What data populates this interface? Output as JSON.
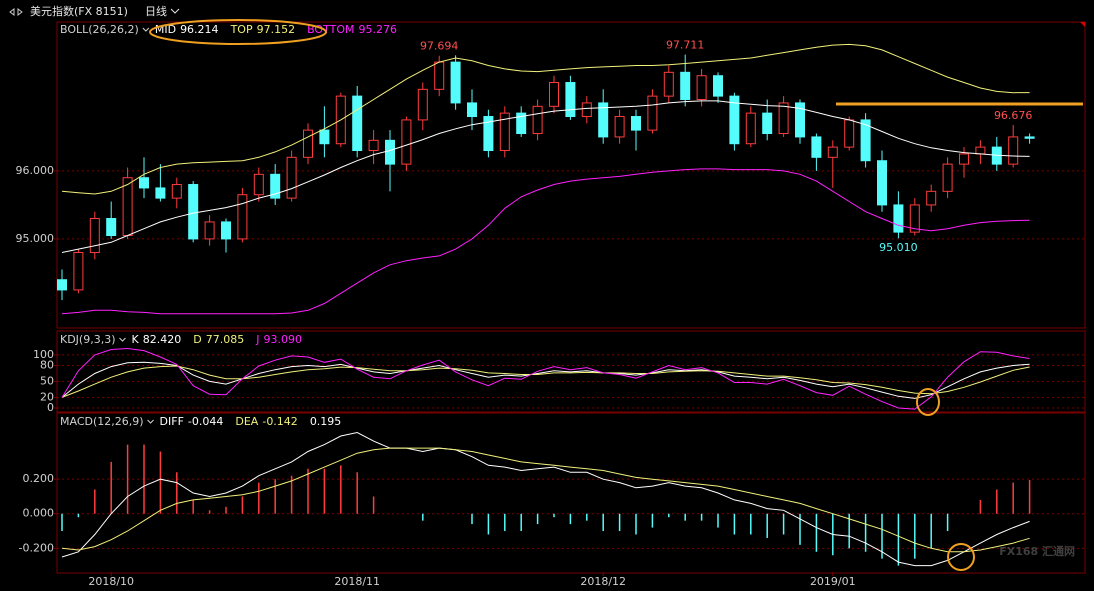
{
  "header": {
    "symbol": "美元指数(FX 8151)",
    "period": "日线"
  },
  "watermark": "FX168 汇通网",
  "chart_data": [
    {
      "type": "candlestick",
      "indicator": "BOLL(26,26,2)",
      "categories": [
        null,
        null,
        null,
        "2018/10",
        null,
        null,
        null,
        null,
        null,
        null,
        null,
        null,
        null,
        null,
        null,
        null,
        null,
        null,
        "2018/11",
        null,
        null,
        null,
        null,
        null,
        null,
        null,
        null,
        null,
        null,
        null,
        null,
        null,
        null,
        "2018/12",
        null,
        null,
        null,
        null,
        null,
        null,
        null,
        null,
        null,
        null,
        null,
        null,
        null,
        "2019/01",
        null,
        null,
        null,
        null,
        null,
        null,
        null,
        null,
        null,
        null,
        null,
        null
      ],
      "open": [
        94.4,
        94.25,
        94.8,
        95.3,
        95.05,
        95.9,
        95.75,
        95.6,
        95.8,
        95.0,
        95.25,
        95.0,
        95.65,
        95.95,
        95.6,
        96.2,
        96.6,
        96.4,
        97.1,
        96.3,
        96.45,
        96.1,
        96.75,
        97.2,
        97.6,
        97.0,
        96.8,
        96.3,
        96.85,
        96.55,
        96.95,
        97.3,
        96.8,
        97.0,
        96.5,
        96.8,
        96.6,
        97.1,
        97.45,
        97.05,
        97.4,
        97.1,
        96.4,
        96.85,
        96.55,
        97.0,
        96.5,
        96.2,
        96.35,
        96.75,
        96.15,
        95.5,
        95.1,
        95.5,
        95.7,
        96.1,
        96.25,
        96.35,
        96.1,
        96.5
      ],
      "high": [
        94.55,
        94.85,
        95.4,
        95.55,
        96.05,
        96.2,
        96.1,
        95.9,
        95.85,
        95.35,
        95.3,
        95.75,
        96.05,
        96.1,
        96.3,
        96.7,
        96.95,
        97.15,
        97.25,
        96.6,
        96.6,
        96.8,
        97.3,
        97.694,
        97.7,
        97.2,
        96.9,
        96.95,
        96.95,
        97.05,
        97.4,
        97.4,
        97.1,
        97.2,
        96.9,
        96.9,
        97.2,
        97.55,
        97.711,
        97.5,
        97.45,
        97.15,
        96.95,
        97.05,
        97.1,
        97.05,
        96.55,
        96.45,
        96.8,
        96.85,
        96.3,
        95.7,
        95.6,
        95.8,
        96.2,
        96.35,
        96.45,
        96.5,
        96.676,
        96.55
      ],
      "low": [
        94.1,
        94.2,
        94.7,
        95.0,
        95.0,
        95.6,
        95.55,
        95.45,
        94.95,
        94.9,
        94.8,
        94.95,
        95.55,
        95.5,
        95.55,
        96.1,
        96.2,
        96.35,
        96.2,
        96.1,
        95.7,
        96.0,
        96.6,
        97.1,
        96.9,
        96.6,
        96.2,
        96.2,
        96.5,
        96.45,
        96.85,
        96.75,
        96.7,
        96.4,
        96.4,
        96.3,
        96.55,
        97.0,
        96.95,
        96.95,
        97.0,
        96.3,
        96.35,
        96.45,
        96.5,
        96.4,
        96.0,
        95.75,
        96.3,
        96.05,
        95.4,
        95.01,
        95.05,
        95.4,
        95.6,
        95.9,
        96.1,
        96.0,
        96.05,
        96.4
      ],
      "close": [
        94.25,
        94.8,
        95.3,
        95.05,
        95.9,
        95.75,
        95.6,
        95.8,
        95.0,
        95.25,
        95.0,
        95.65,
        95.95,
        95.6,
        96.2,
        96.6,
        96.4,
        97.1,
        96.3,
        96.45,
        96.1,
        96.75,
        97.2,
        97.6,
        97.0,
        96.8,
        96.3,
        96.85,
        96.55,
        96.95,
        97.3,
        96.8,
        97.0,
        96.5,
        96.8,
        96.6,
        97.1,
        97.45,
        97.05,
        97.4,
        97.1,
        96.4,
        96.85,
        96.55,
        97.0,
        96.5,
        96.2,
        96.35,
        96.75,
        96.15,
        95.5,
        95.1,
        95.5,
        95.7,
        96.1,
        96.25,
        96.35,
        96.1,
        96.5,
        96.48
      ],
      "up_color": "#ff3c3c",
      "down_color": "#54fcfc",
      "ylim": [
        93.69,
        98.19
      ],
      "yticks": [
        {
          "value": 95,
          "label": "95.000"
        },
        {
          "value": 96,
          "label": "96.000"
        }
      ],
      "grid": true,
      "series": [
        {
          "name": "MID",
          "color": "#ffffff",
          "legend_label": "96.214",
          "values": [
            94.8,
            94.85,
            94.9,
            94.95,
            95.05,
            95.15,
            95.25,
            95.32,
            95.38,
            95.42,
            95.46,
            95.52,
            95.6,
            95.66,
            95.74,
            95.84,
            95.94,
            96.05,
            96.15,
            96.24,
            96.3,
            96.38,
            96.46,
            96.55,
            96.62,
            96.68,
            96.72,
            96.76,
            96.8,
            96.84,
            96.88,
            96.9,
            96.92,
            96.93,
            96.94,
            96.95,
            96.97,
            97.0,
            97.02,
            97.03,
            97.03,
            97.0,
            96.98,
            96.96,
            96.95,
            96.92,
            96.86,
            96.8,
            96.75,
            96.68,
            96.58,
            96.48,
            96.4,
            96.34,
            96.3,
            96.27,
            96.25,
            96.23,
            96.22,
            96.214
          ]
        },
        {
          "name": "TOP",
          "color": "#f0f07a",
          "legend_label": "97.152",
          "values": [
            95.7,
            95.68,
            95.66,
            95.7,
            95.8,
            95.95,
            96.05,
            96.1,
            96.12,
            96.13,
            96.14,
            96.15,
            96.2,
            96.28,
            96.38,
            96.5,
            96.62,
            96.75,
            96.9,
            97.05,
            97.2,
            97.35,
            97.48,
            97.6,
            97.66,
            97.62,
            97.55,
            97.5,
            97.47,
            97.46,
            97.48,
            97.5,
            97.52,
            97.53,
            97.54,
            97.55,
            97.55,
            97.56,
            97.58,
            97.6,
            97.62,
            97.64,
            97.66,
            97.7,
            97.74,
            97.78,
            97.82,
            97.85,
            97.86,
            97.84,
            97.78,
            97.68,
            97.58,
            97.48,
            97.38,
            97.3,
            97.22,
            97.17,
            97.15,
            97.152
          ]
        },
        {
          "name": "BOTTOM",
          "color": "#ff22ff",
          "legend_label": "95.276",
          "values": [
            93.9,
            93.92,
            93.95,
            93.95,
            93.93,
            93.92,
            93.9,
            93.9,
            93.9,
            93.9,
            93.9,
            93.9,
            93.9,
            93.9,
            93.91,
            93.95,
            94.05,
            94.2,
            94.35,
            94.5,
            94.62,
            94.68,
            94.72,
            94.75,
            94.85,
            95.0,
            95.2,
            95.45,
            95.62,
            95.72,
            95.8,
            95.85,
            95.88,
            95.9,
            95.92,
            95.95,
            95.98,
            96.0,
            96.02,
            96.03,
            96.03,
            96.02,
            96.02,
            96.02,
            96.0,
            95.95,
            95.85,
            95.7,
            95.55,
            95.4,
            95.3,
            95.2,
            95.15,
            95.12,
            95.15,
            95.2,
            95.24,
            95.26,
            95.27,
            95.276
          ]
        }
      ],
      "annotations": [
        {
          "text": "97.694",
          "series": "high",
          "index": 23
        },
        {
          "text": "97.711",
          "series": "high",
          "index": 38
        },
        {
          "text": "95.010",
          "series": "low",
          "index": 51
        },
        {
          "text": "96.676",
          "series": "high",
          "index": 58
        }
      ]
    },
    {
      "type": "line",
      "indicator": "KDJ(9,3,3)",
      "ylim": [
        -7.5,
        143
      ],
      "yticks": [
        0,
        20,
        50,
        80,
        100
      ],
      "grid": true,
      "series": [
        {
          "name": "K",
          "color": "#ffffff",
          "legend_label": "82.420",
          "values": [
            20,
            45,
            65,
            78,
            85,
            86,
            84,
            80,
            62,
            50,
            45,
            55,
            65,
            72,
            78,
            80,
            78,
            82,
            75,
            68,
            65,
            70,
            75,
            80,
            72,
            65,
            58,
            62,
            60,
            65,
            70,
            68,
            70,
            66,
            65,
            62,
            66,
            72,
            70,
            72,
            68,
            60,
            58,
            55,
            58,
            52,
            45,
            40,
            45,
            38,
            30,
            22,
            18,
            25,
            40,
            55,
            68,
            75,
            80,
            82.42
          ]
        },
        {
          "name": "D",
          "color": "#f0f07a",
          "legend_label": "77.085",
          "values": [
            20,
            32,
            45,
            58,
            68,
            75,
            78,
            79,
            72,
            62,
            55,
            55,
            58,
            63,
            68,
            72,
            74,
            77,
            76,
            73,
            70,
            70,
            72,
            75,
            74,
            71,
            66,
            65,
            63,
            63,
            66,
            66,
            67,
            66,
            66,
            65,
            65,
            68,
            69,
            70,
            69,
            66,
            63,
            60,
            60,
            57,
            53,
            48,
            47,
            44,
            39,
            33,
            28,
            27,
            31,
            39,
            49,
            60,
            71,
            77.085
          ]
        },
        {
          "name": "J",
          "color": "#ff22ff",
          "legend_label": "93.090",
          "values": [
            20,
            70,
            100,
            110,
            112,
            108,
            96,
            82,
            42,
            26,
            25,
            55,
            79,
            90,
            98,
            96,
            86,
            92,
            73,
            58,
            55,
            70,
            81,
            90,
            68,
            53,
            42,
            56,
            54,
            69,
            78,
            72,
            76,
            66,
            63,
            56,
            68,
            80,
            72,
            76,
            66,
            48,
            48,
            45,
            54,
            42,
            29,
            24,
            41,
            26,
            12,
            0,
            -2,
            21,
            58,
            87,
            106,
            105,
            98,
            93.09
          ]
        }
      ]
    },
    {
      "type": "macd",
      "indicator": "MACD(12,26,9)",
      "ylim": [
        -0.337,
        0.577
      ],
      "yticks": [
        {
          "value": -0.2,
          "label": "-0.200"
        },
        {
          "value": 0,
          "label": "0.000"
        },
        {
          "value": 0.2,
          "label": "0.200"
        }
      ],
      "grid": true,
      "series": [
        {
          "name": "DIFF",
          "color": "#ffffff",
          "legend_label": "-0.044",
          "values": [
            -0.25,
            -0.22,
            -0.12,
            0.0,
            0.1,
            0.16,
            0.2,
            0.18,
            0.12,
            0.1,
            0.12,
            0.16,
            0.22,
            0.26,
            0.3,
            0.36,
            0.4,
            0.45,
            0.47,
            0.42,
            0.38,
            0.38,
            0.36,
            0.38,
            0.37,
            0.33,
            0.28,
            0.27,
            0.25,
            0.26,
            0.27,
            0.24,
            0.24,
            0.2,
            0.18,
            0.15,
            0.16,
            0.18,
            0.16,
            0.15,
            0.12,
            0.08,
            0.06,
            0.03,
            0.02,
            -0.03,
            -0.08,
            -0.12,
            -0.13,
            -0.17,
            -0.22,
            -0.28,
            -0.3,
            -0.3,
            -0.27,
            -0.22,
            -0.17,
            -0.12,
            -0.08,
            -0.044
          ]
        },
        {
          "name": "DEA",
          "color": "#f0f07a",
          "legend_label": "-0.142",
          "values": [
            -0.2,
            -0.21,
            -0.19,
            -0.15,
            -0.1,
            -0.04,
            0.02,
            0.06,
            0.08,
            0.09,
            0.1,
            0.11,
            0.13,
            0.16,
            0.19,
            0.23,
            0.27,
            0.31,
            0.35,
            0.37,
            0.38,
            0.38,
            0.38,
            0.38,
            0.37,
            0.36,
            0.34,
            0.32,
            0.3,
            0.29,
            0.28,
            0.27,
            0.26,
            0.25,
            0.23,
            0.21,
            0.2,
            0.19,
            0.18,
            0.17,
            0.16,
            0.14,
            0.12,
            0.1,
            0.08,
            0.06,
            0.03,
            0.0,
            -0.03,
            -0.06,
            -0.09,
            -0.13,
            -0.17,
            -0.2,
            -0.22,
            -0.22,
            -0.21,
            -0.19,
            -0.17,
            -0.142
          ]
        }
      ],
      "histogram": {
        "up_color": "#ff3c3c",
        "down_color": "#54fcfc",
        "values": [
          -0.1,
          -0.02,
          0.14,
          0.3,
          0.4,
          0.4,
          0.36,
          0.24,
          0.08,
          0.02,
          0.04,
          0.1,
          0.18,
          0.2,
          0.22,
          0.26,
          0.26,
          0.28,
          0.24,
          0.1,
          0.0,
          0.0,
          -0.04,
          0.0,
          0.0,
          -0.06,
          -0.12,
          -0.1,
          -0.1,
          -0.06,
          -0.02,
          -0.06,
          -0.04,
          -0.1,
          -0.1,
          -0.12,
          -0.08,
          -0.02,
          -0.04,
          -0.04,
          -0.08,
          -0.12,
          -0.12,
          -0.14,
          -0.12,
          -0.18,
          -0.22,
          -0.24,
          -0.2,
          -0.22,
          -0.26,
          -0.3,
          -0.26,
          -0.2,
          -0.1,
          0.0,
          0.08,
          0.14,
          0.18,
          0.195
        ]
      }
    }
  ]
}
